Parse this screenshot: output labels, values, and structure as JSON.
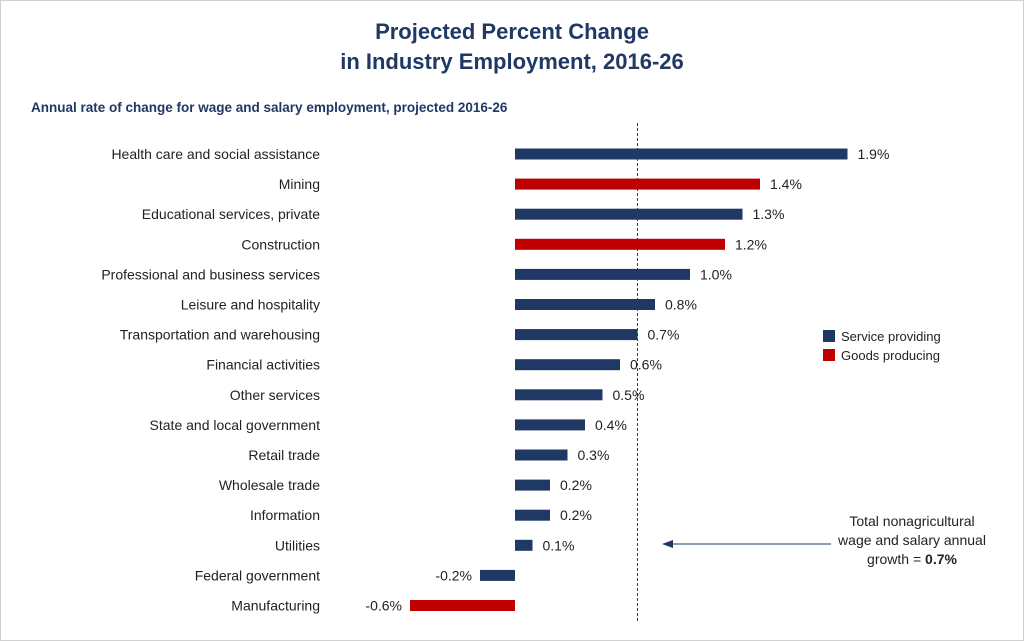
{
  "chart_data": {
    "type": "bar",
    "orientation": "horizontal",
    "title_lines": [
      "Projected Percent Change",
      "in Industry Employment, 2016-26"
    ],
    "subtitle": "Annual rate of change for wage and salary employment, projected 2016-26",
    "categories": [
      "Health care and social assistance",
      "Mining",
      "Educational services, private",
      "Construction",
      "Professional and business services",
      "Leisure and hospitality",
      "Transportation and warehousing",
      "Financial activities",
      "Other services",
      "State and local government",
      "Retail trade",
      "Wholesale trade",
      "Information",
      "Utilities",
      "Federal government",
      "Manufacturing"
    ],
    "values": [
      1.9,
      1.4,
      1.3,
      1.2,
      1.0,
      0.8,
      0.7,
      0.6,
      0.5,
      0.4,
      0.3,
      0.2,
      0.2,
      0.1,
      -0.2,
      -0.6
    ],
    "value_labels": [
      "1.9%",
      "1.4%",
      "1.3%",
      "1.2%",
      "1.0%",
      "0.8%",
      "0.7%",
      "0.6%",
      "0.5%",
      "0.4%",
      "0.3%",
      "0.2%",
      "0.2%",
      "0.1%",
      "-0.2%",
      "-0.6%"
    ],
    "groups": [
      "service",
      "goods",
      "service",
      "goods",
      "service",
      "service",
      "service",
      "service",
      "service",
      "service",
      "service",
      "service",
      "service",
      "service",
      "service",
      "goods"
    ],
    "series": [
      {
        "key": "service",
        "name": "Service providing",
        "color": "#1f3864"
      },
      {
        "key": "goods",
        "name": "Goods producing",
        "color": "#c00000"
      }
    ],
    "reference_line": {
      "value": 0.7,
      "color": "#c00000",
      "style": "dashed",
      "annotation_lines": [
        "Total nonagricultural",
        "wage and salary annual"
      ],
      "annotation_prefix": "growth = ",
      "annotation_value": "0.7%"
    },
    "xlim": [
      -0.6,
      1.9
    ],
    "grid": false,
    "legend_position": "right"
  }
}
